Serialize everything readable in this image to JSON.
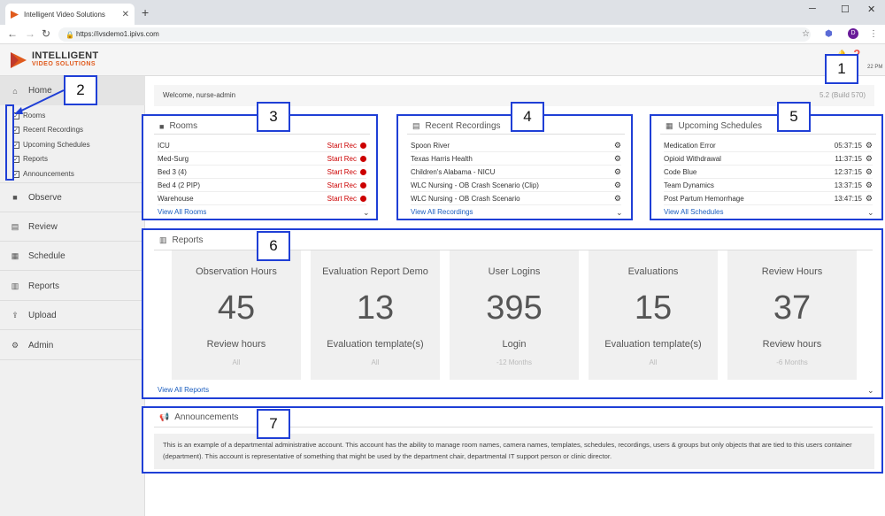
{
  "browser": {
    "tab_title": "Intelligent Video Solutions",
    "url": "https://ivsdemo1.ipivs.com",
    "avatar_letter": "D"
  },
  "app": {
    "logo_line1": "INTELLIGENT",
    "logo_line2": "VIDEO SOLUTIONS",
    "clock": "22 PM",
    "welcome": "Welcome, nurse-admin",
    "version": "5.2 (Build 570)"
  },
  "sidebar": {
    "home": "Home",
    "home_subitems": [
      "Rooms",
      "Recent Recordings",
      "Upcoming Schedules",
      "Reports",
      "Announcements"
    ],
    "items": [
      "Observe",
      "Review",
      "Schedule",
      "Reports",
      "Upload",
      "Admin"
    ]
  },
  "rooms": {
    "title": "Rooms",
    "action": "Start Rec",
    "items": [
      "ICU",
      "Med-Surg",
      "Bed 3 (4)",
      "Bed 4 (2 PIP)",
      "Warehouse"
    ],
    "view_all": "View All Rooms"
  },
  "recordings": {
    "title": "Recent Recordings",
    "items": [
      "Spoon River",
      "Texas Harris Health",
      "Children's Alabama - NICU",
      "WLC Nursing - OB Crash Scenario (Clip)",
      "WLC Nursing - OB Crash Scenario"
    ],
    "view_all": "View All Recordings"
  },
  "schedules": {
    "title": "Upcoming Schedules",
    "items": [
      {
        "name": "Medication Error",
        "time": "05:37:15"
      },
      {
        "name": "Opioid Withdrawal",
        "time": "11:37:15"
      },
      {
        "name": "Code Blue",
        "time": "12:37:15"
      },
      {
        "name": "Team Dynamics",
        "time": "13:37:15"
      },
      {
        "name": "Post Partum Hemorrhage",
        "time": "13:47:15"
      }
    ],
    "view_all": "View All Schedules"
  },
  "reports": {
    "title": "Reports",
    "cards": [
      {
        "title": "Observation Hours",
        "value": "45",
        "subtitle": "Review hours",
        "filter": "All"
      },
      {
        "title": "Evaluation Report Demo",
        "value": "13",
        "subtitle": "Evaluation template(s)",
        "filter": "All"
      },
      {
        "title": "User Logins",
        "value": "395",
        "subtitle": "Login",
        "filter": "-12 Months"
      },
      {
        "title": "Evaluations",
        "value": "15",
        "subtitle": "Evaluation template(s)",
        "filter": "All"
      },
      {
        "title": "Review Hours",
        "value": "37",
        "subtitle": "Review hours",
        "filter": "-6 Months"
      }
    ],
    "view_all": "View All Reports"
  },
  "announcements": {
    "title": "Announcements",
    "text": "This is an example of a departmental administrative account. This account has the ability to manage room names, camera names, templates, schedules, recordings, users & groups but only objects that are tied to this users container (department). This account is representative of something that might be used by the department chair, departmental IT support person or clinic director."
  },
  "callouts": [
    "1",
    "2",
    "3",
    "4",
    "5",
    "6",
    "7"
  ],
  "colors": {
    "accent_link": "#1a5dbf",
    "callout_blue": "#1f3fd6",
    "rec_red": "#cc0000",
    "brand_orange": "#e05a1c"
  }
}
